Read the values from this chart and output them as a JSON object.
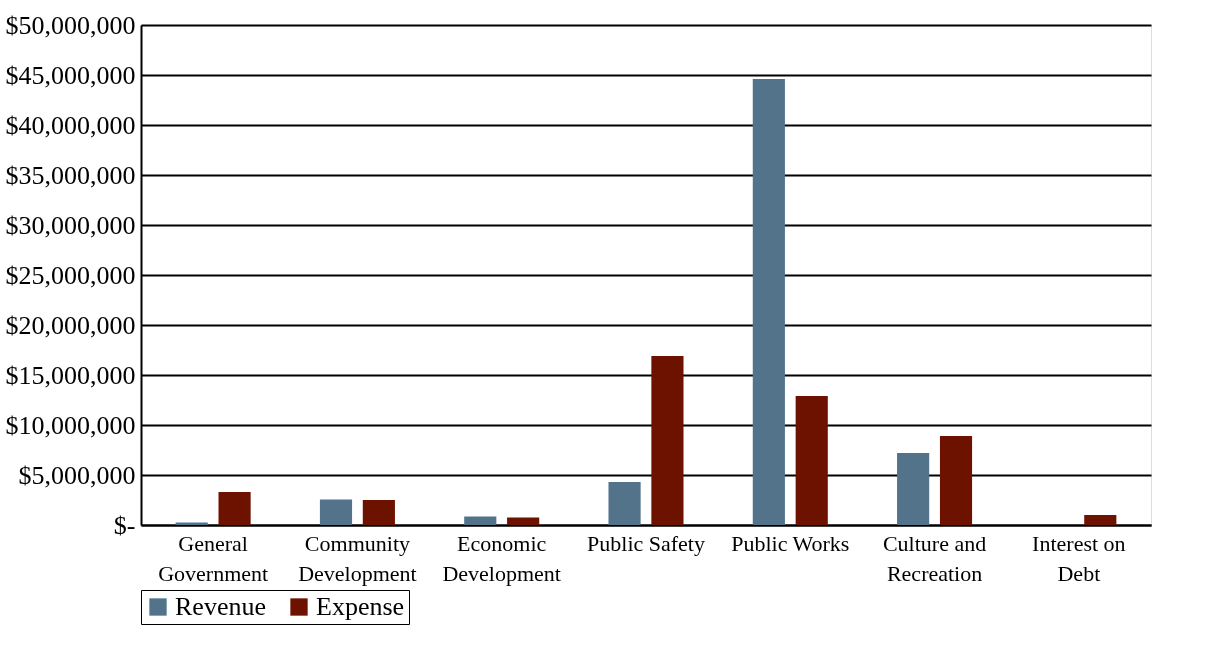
{
  "chart_data": {
    "type": "bar",
    "categories": [
      "General Government",
      "Community Development",
      "Economic Development",
      "Public Safety",
      "Public Works",
      "Culture and Recreation",
      "Interest on Debt"
    ],
    "series": [
      {
        "name": "Revenue",
        "color": "#52738a",
        "values": [
          250000,
          2550000,
          850000,
          4300000,
          44600000,
          7200000,
          0
        ]
      },
      {
        "name": "Expense",
        "color": "#6e1200",
        "values": [
          3300000,
          2500000,
          750000,
          16900000,
          12900000,
          8900000,
          1000000
        ]
      }
    ],
    "ylim": [
      0,
      50000000
    ],
    "yticks": [
      {
        "value": 0,
        "label": "$-"
      },
      {
        "value": 5000000,
        "label": "$5,000,000"
      },
      {
        "value": 10000000,
        "label": "$10,000,000"
      },
      {
        "value": 15000000,
        "label": "$15,000,000"
      },
      {
        "value": 20000000,
        "label": "$20,000,000"
      },
      {
        "value": 25000000,
        "label": "$25,000,000"
      },
      {
        "value": 30000000,
        "label": "$30,000,000"
      },
      {
        "value": 35000000,
        "label": "$35,000,000"
      },
      {
        "value": 40000000,
        "label": "$40,000,000"
      },
      {
        "value": 45000000,
        "label": "$45,000,000"
      },
      {
        "value": 50000000,
        "label": "$50,000,000"
      }
    ],
    "grid": "y",
    "legend": "bottom"
  }
}
